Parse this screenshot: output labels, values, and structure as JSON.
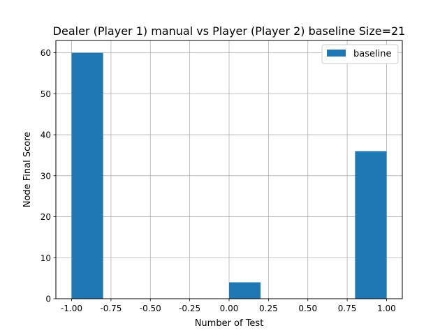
{
  "chart_data": {
    "type": "bar",
    "title": "Dealer (Player 1) manual vs Player (Player 2) baseline Size=21",
    "xlabel": "Number of Test",
    "ylabel": "Node Final Score",
    "xlim": [
      -1.1,
      1.1
    ],
    "ylim": [
      0,
      63
    ],
    "xticks": [
      "-1.00",
      "-0.75",
      "-0.50",
      "-0.25",
      "0.00",
      "0.25",
      "0.50",
      "0.75",
      "1.00"
    ],
    "xtick_values": [
      -1.0,
      -0.75,
      -0.5,
      -0.25,
      0.0,
      0.25,
      0.5,
      0.75,
      1.0
    ],
    "yticks": [
      "0",
      "10",
      "20",
      "30",
      "40",
      "50",
      "60"
    ],
    "ytick_values": [
      0,
      10,
      20,
      30,
      40,
      50,
      60
    ],
    "grid": true,
    "legend_position": "top-right",
    "series": [
      {
        "name": "baseline",
        "color": "#1f77b4",
        "bins": [
          {
            "x0": -1.0,
            "x1": -0.8,
            "value": 60
          },
          {
            "x0": -0.8,
            "x1": -0.6,
            "value": 0
          },
          {
            "x0": -0.6,
            "x1": -0.4,
            "value": 0
          },
          {
            "x0": -0.4,
            "x1": -0.2,
            "value": 0
          },
          {
            "x0": -0.2,
            "x1": 0.0,
            "value": 0
          },
          {
            "x0": 0.0,
            "x1": 0.2,
            "value": 4
          },
          {
            "x0": 0.2,
            "x1": 0.4,
            "value": 0
          },
          {
            "x0": 0.4,
            "x1": 0.6,
            "value": 0
          },
          {
            "x0": 0.6,
            "x1": 0.8,
            "value": 0
          },
          {
            "x0": 0.8,
            "x1": 1.0,
            "value": 36
          }
        ]
      }
    ]
  }
}
